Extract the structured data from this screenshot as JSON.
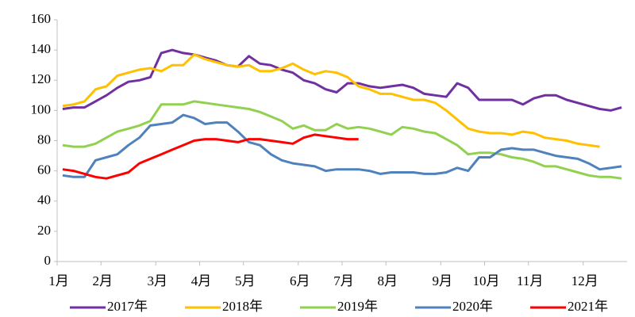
{
  "chart_data": {
    "type": "line",
    "categories": [
      "1月",
      null,
      null,
      null,
      "2月",
      null,
      null,
      null,
      null,
      "3月",
      null,
      null,
      null,
      "4月",
      null,
      null,
      null,
      "5月",
      null,
      null,
      null,
      null,
      "6月",
      null,
      null,
      null,
      "7月",
      null,
      null,
      null,
      "8月",
      null,
      null,
      null,
      null,
      "9月",
      null,
      null,
      null,
      "10月",
      null,
      null,
      null,
      "11月",
      null,
      null,
      null,
      null,
      "12月",
      null,
      null,
      null
    ],
    "series": [
      {
        "name": "2017年",
        "color": "#7030a0",
        "values": [
          101,
          102,
          102,
          106,
          110,
          115,
          119,
          120,
          122,
          138,
          140,
          138,
          137,
          135,
          133,
          130,
          129,
          136,
          131,
          130,
          127,
          125,
          120,
          118,
          114,
          112,
          118,
          118,
          116,
          115,
          116,
          117,
          115,
          111,
          110,
          109,
          118,
          115,
          107,
          107,
          107,
          107,
          104,
          108,
          110,
          110,
          107,
          105,
          103,
          101,
          100,
          102
        ]
      },
      {
        "name": "2018年",
        "color": "#ffc000",
        "values": [
          103,
          104,
          106,
          114,
          116,
          123,
          125,
          127,
          128,
          126,
          130,
          130,
          137,
          134,
          132,
          130,
          129,
          130,
          126,
          126,
          128,
          131,
          127,
          124,
          126,
          125,
          122,
          116,
          114,
          111,
          111,
          109,
          107,
          107,
          105,
          100,
          94,
          88,
          86,
          85,
          85,
          84,
          86,
          85,
          82,
          81,
          80,
          78,
          77,
          76,
          null,
          null
        ]
      },
      {
        "name": "2019年",
        "color": "#92d050",
        "values": [
          77,
          76,
          76,
          78,
          82,
          86,
          88,
          90,
          93,
          104,
          104,
          104,
          106,
          105,
          104,
          103,
          102,
          101,
          99,
          96,
          93,
          88,
          90,
          87,
          87,
          91,
          88,
          89,
          88,
          86,
          84,
          89,
          88,
          86,
          85,
          81,
          77,
          71,
          72,
          72,
          71,
          69,
          68,
          66,
          63,
          63,
          61,
          59,
          57,
          56,
          56,
          55
        ]
      },
      {
        "name": "2020年",
        "color": "#4f81bd",
        "values": [
          57,
          56,
          56,
          67,
          69,
          71,
          77,
          82,
          90,
          91,
          92,
          97,
          95,
          91,
          92,
          92,
          86,
          79,
          77,
          71,
          67,
          65,
          64,
          63,
          60,
          61,
          61,
          61,
          60,
          58,
          59,
          59,
          59,
          58,
          58,
          59,
          62,
          60,
          69,
          69,
          74,
          75,
          74,
          74,
          72,
          70,
          69,
          68,
          65,
          61,
          62,
          63
        ]
      },
      {
        "name": "2021年",
        "color": "#ff0000",
        "values": [
          61,
          60,
          58,
          56,
          55,
          57,
          59,
          65,
          68,
          71,
          74,
          77,
          80,
          81,
          81,
          80,
          79,
          81,
          81,
          80,
          79,
          78,
          82,
          84,
          83,
          82,
          81,
          81,
          null,
          null,
          null,
          null,
          null,
          null,
          null,
          null,
          null,
          null,
          null,
          null,
          null,
          null,
          null,
          null,
          null,
          null,
          null,
          null,
          null,
          null,
          null,
          null
        ]
      }
    ],
    "ylim": [
      0,
      160
    ],
    "yticks": [
      0,
      20,
      40,
      60,
      80,
      100,
      120,
      140,
      160
    ],
    "grid": false,
    "legend": "bottom"
  }
}
